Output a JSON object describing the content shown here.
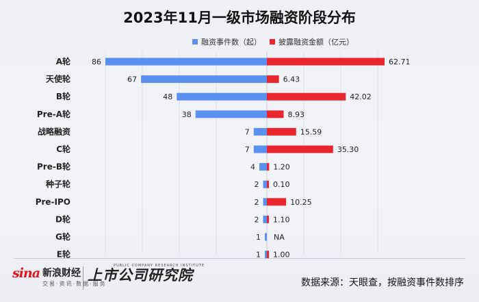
{
  "chart_data": {
    "type": "bar",
    "title": "2023年11月一级市场融资阶段分布",
    "orientation": "diverging-horizontal",
    "categories": [
      "A轮",
      "天使轮",
      "B轮",
      "Pre-A轮",
      "战略融资",
      "C轮",
      "Pre-B轮",
      "种子轮",
      "Pre-IPO",
      "D轮",
      "G轮",
      "E轮"
    ],
    "series": [
      {
        "name": "融资事件数（起）",
        "color": "#5b8ff0",
        "direction": "left",
        "values": [
          86,
          67,
          48,
          38,
          7,
          7,
          4,
          2,
          2,
          2,
          1,
          1
        ],
        "labels": [
          "86",
          "67",
          "48",
          "38",
          "7",
          "7",
          "4",
          "2",
          "2",
          "2",
          "1",
          "1"
        ]
      },
      {
        "name": "披露融资金额（亿元）",
        "color": "#e8262d",
        "direction": "right",
        "values": [
          62.71,
          6.43,
          42.02,
          8.93,
          15.59,
          35.3,
          1.2,
          0.1,
          10.25,
          1.1,
          null,
          1.0
        ],
        "labels": [
          "62.71",
          "6.43",
          "42.02",
          "8.93",
          "15.59",
          "35.30",
          "1.20",
          "0.10",
          "10.25",
          "1.10",
          "NA",
          "1.00"
        ]
      }
    ],
    "legend_position": "top-right",
    "grid": true
  },
  "footer": {
    "brand_mark": "sina",
    "brand_name": "新浪财经",
    "brand_sub": "交易·资讯·数据·服务",
    "institute_name": "上市公司研究院",
    "institute_en": "PUBLIC COMPANY RESEARCH INSTITUTE",
    "source": "数据来源：天眼查，按融资事件数排序"
  }
}
